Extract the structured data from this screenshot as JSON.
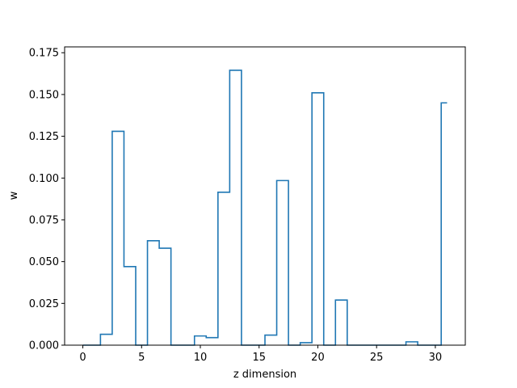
{
  "chart_data": {
    "type": "line",
    "step": "mid",
    "title": "",
    "xlabel": "z dimension",
    "ylabel": "w",
    "xlim": [
      -1.55,
      32.55
    ],
    "ylim": [
      0,
      0.1785
    ],
    "xticks": [
      0,
      5,
      10,
      15,
      20,
      25,
      30
    ],
    "yticks": [
      0.0,
      0.025,
      0.05,
      0.075,
      0.1,
      0.125,
      0.15,
      0.175
    ],
    "ytick_labels": [
      "0.000",
      "0.025",
      "0.050",
      "0.075",
      "0.100",
      "0.125",
      "0.150",
      "0.175"
    ],
    "grid": false,
    "line_color": "#1f77b4",
    "x": [
      0,
      1,
      2,
      3,
      4,
      5,
      6,
      7,
      8,
      9,
      10,
      11,
      12,
      13,
      14,
      15,
      16,
      17,
      18,
      19,
      20,
      21,
      22,
      23,
      24,
      25,
      26,
      27,
      28,
      29,
      30,
      31
    ],
    "y": [
      0,
      0,
      0.0065,
      0.128,
      0.047,
      0,
      0.0625,
      0.058,
      0,
      0,
      0.0055,
      0.0045,
      0.0915,
      0.1645,
      0,
      0,
      0.006,
      0.0985,
      0,
      0.0015,
      0.151,
      0,
      0.027,
      0,
      0,
      0,
      0,
      0,
      0.002,
      0,
      0,
      0.145
    ]
  }
}
